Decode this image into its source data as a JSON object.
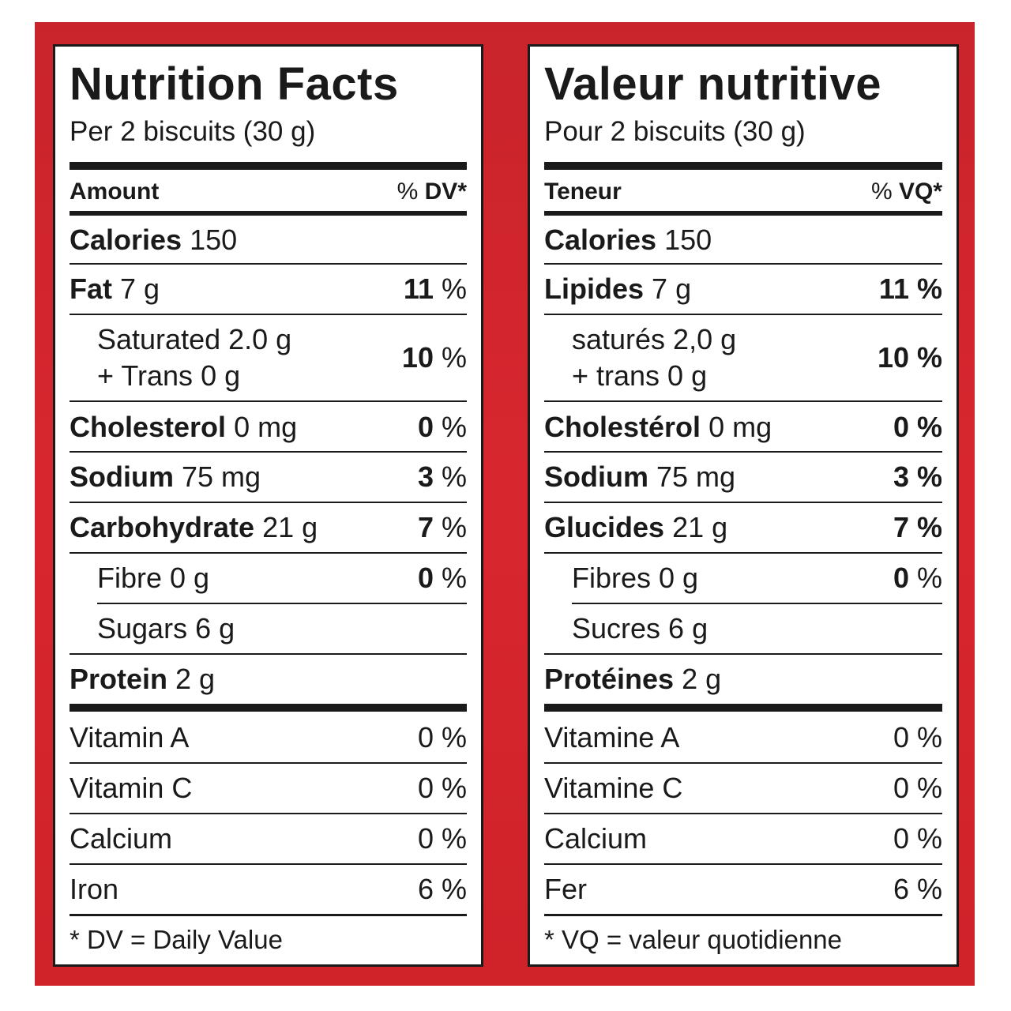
{
  "english": {
    "title": "Nutrition Facts",
    "serving": "Per 2 biscuits (30 g)",
    "header_amount": "Amount",
    "header_pct_symbol": "%",
    "header_dv": "DV*",
    "calories_label": "Calories",
    "calories_value": "150",
    "fat_label": "Fat",
    "fat_value": "7 g",
    "fat_pct_num": "11",
    "saturated_line": "Saturated 2.0 g",
    "trans_line": "+ Trans 0 g",
    "sat_pct_num": "10",
    "cholesterol_label": "Cholesterol",
    "cholesterol_value": "0 mg",
    "cholesterol_pct_num": "0",
    "sodium_label": "Sodium",
    "sodium_value": "75 mg",
    "sodium_pct_num": "3",
    "carb_label": "Carbohydrate",
    "carb_value": "21 g",
    "carb_pct_num": "7",
    "fibre_line": "Fibre 0 g",
    "fibre_pct_num": "0",
    "sugars_line": "Sugars 6 g",
    "protein_label": "Protein",
    "protein_value": "2 g",
    "vitamin_a": "Vitamin A",
    "vitamin_a_pct": "0 %",
    "vitamin_c": "Vitamin C",
    "vitamin_c_pct": "0 %",
    "calcium": "Calcium",
    "calcium_pct": "0 %",
    "iron": "Iron",
    "iron_pct": "6 %",
    "footnote": "* DV = Daily Value"
  },
  "french": {
    "title": "Valeur nutritive",
    "serving": "Pour 2 biscuits (30 g)",
    "header_amount": "Teneur",
    "header_pct_symbol": "%",
    "header_dv": "VQ*",
    "calories_label": "Calories",
    "calories_value": "150",
    "fat_label": "Lipides",
    "fat_value": "7 g",
    "fat_pct": "11 %",
    "saturated_line": "saturés 2,0 g",
    "trans_line": "+ trans 0 g",
    "sat_pct": "10 %",
    "cholesterol_label": "Cholestérol",
    "cholesterol_value": "0 mg",
    "cholesterol_pct": "0 %",
    "sodium_label": "Sodium",
    "sodium_value": "75 mg",
    "sodium_pct": "3 %",
    "carb_label": "Glucides",
    "carb_value": "21 g",
    "carb_pct": "7 %",
    "fibre_line": "Fibres 0 g",
    "fibre_pct_num": "0",
    "sugars_line": "Sucres 6 g",
    "protein_label": "Protéines",
    "protein_value": "2 g",
    "vitamin_a": "Vitamine A",
    "vitamin_a_pct": "0 %",
    "vitamin_c": "Vitamine C",
    "vitamin_c_pct": "0 %",
    "calcium": "Calcium",
    "calcium_pct": "0 %",
    "iron": "Fer",
    "iron_pct": "6 %",
    "footnote": "* VQ = valeur quotidienne"
  },
  "percent_sign": "%",
  "colors": {
    "frame_red": "#d8262e",
    "ink": "#1a1a1a",
    "panel": "#ffffff"
  }
}
